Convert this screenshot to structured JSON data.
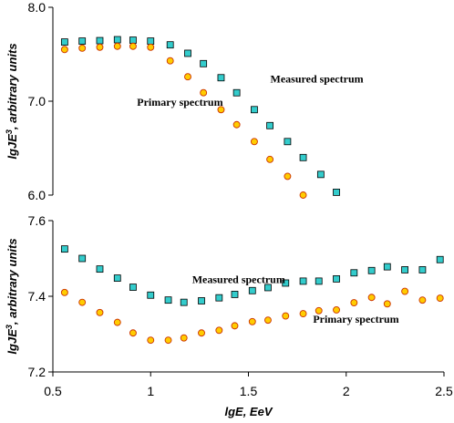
{
  "chart_data": [
    {
      "type": "scatter",
      "xlim": [
        0.5,
        2.5
      ],
      "ylim": [
        6.0,
        8.0
      ],
      "yticks": [
        "6.0",
        "7.0",
        "8.0"
      ],
      "ytick_values": [
        6.0,
        7.0,
        8.0
      ],
      "ylabel": "lgJE³, arbitrary units",
      "ylabel_main": "lgJE",
      "ylabel_sup": "3",
      "ylabel_rest": ", arbitrary units",
      "annotations": [
        {
          "text": "Measured spectrum",
          "x": 1.85,
          "y": 7.2
        },
        {
          "text": "Primary spectrum",
          "x": 1.15,
          "y": 6.95
        }
      ],
      "series": [
        {
          "marker": "square",
          "color": "#33cccc",
          "edge": "#000000",
          "x": [
            0.56,
            0.65,
            0.74,
            0.83,
            0.91,
            1.0,
            1.1,
            1.19,
            1.27,
            1.36,
            1.44,
            1.53,
            1.61,
            1.7,
            1.78,
            1.87,
            1.95
          ],
          "y": [
            7.63,
            7.64,
            7.645,
            7.655,
            7.65,
            7.64,
            7.6,
            7.51,
            7.4,
            7.25,
            7.09,
            6.91,
            6.74,
            6.57,
            6.4,
            6.22,
            6.03
          ]
        },
        {
          "marker": "circle",
          "color": "#ffcc00",
          "edge": "#cc3300",
          "x": [
            0.56,
            0.65,
            0.74,
            0.83,
            0.91,
            1.0,
            1.1,
            1.19,
            1.27,
            1.36,
            1.44,
            1.53,
            1.61,
            1.7,
            1.78
          ],
          "y": [
            7.55,
            7.565,
            7.575,
            7.585,
            7.585,
            7.575,
            7.43,
            7.26,
            7.09,
            6.91,
            6.75,
            6.57,
            6.38,
            6.2,
            6.0
          ]
        }
      ]
    },
    {
      "type": "scatter",
      "xlim": [
        0.5,
        2.5
      ],
      "ylim": [
        7.2,
        7.6
      ],
      "yticks": [
        "7.2",
        "7.4",
        "7.6"
      ],
      "ytick_values": [
        7.2,
        7.4,
        7.6
      ],
      "xticks": [
        "0.5",
        "1",
        "1.5",
        "2",
        "2.5"
      ],
      "xtick_values": [
        0.5,
        1.0,
        1.5,
        2.0,
        2.5
      ],
      "xlabel": "lgE, EeV",
      "ylabel": "lgJE³, arbitrary units",
      "ylabel_main": "lgJE",
      "ylabel_sup": "3",
      "ylabel_rest": ", arbitrary units",
      "annotations": [
        {
          "text": "Measured spectrum",
          "x": 1.45,
          "y": 7.435
        },
        {
          "text": "Primary spectrum",
          "x": 2.05,
          "y": 7.33
        }
      ],
      "series": [
        {
          "marker": "square",
          "color": "#33cccc",
          "edge": "#000000",
          "x": [
            0.56,
            0.65,
            0.74,
            0.83,
            0.91,
            1.0,
            1.09,
            1.17,
            1.26,
            1.35,
            1.43,
            1.52,
            1.6,
            1.69,
            1.78,
            1.86,
            1.95,
            2.04,
            2.13,
            2.21,
            2.3,
            2.39,
            2.48
          ],
          "y": [
            7.525,
            7.5,
            7.472,
            7.448,
            7.424,
            7.403,
            7.39,
            7.384,
            7.388,
            7.396,
            7.405,
            7.415,
            7.423,
            7.435,
            7.44,
            7.44,
            7.446,
            7.462,
            7.468,
            7.478,
            7.47,
            7.47,
            7.497
          ]
        },
        {
          "marker": "circle",
          "color": "#ffcc00",
          "edge": "#cc3300",
          "x": [
            0.56,
            0.65,
            0.74,
            0.83,
            0.91,
            1.0,
            1.09,
            1.17,
            1.26,
            1.35,
            1.43,
            1.52,
            1.6,
            1.69,
            1.78,
            1.86,
            1.95,
            2.04,
            2.13,
            2.21,
            2.3,
            2.39,
            2.48
          ],
          "y": [
            7.41,
            7.384,
            7.357,
            7.331,
            7.303,
            7.284,
            7.284,
            7.29,
            7.303,
            7.31,
            7.322,
            7.333,
            7.337,
            7.348,
            7.354,
            7.362,
            7.364,
            7.383,
            7.397,
            7.38,
            7.413,
            7.39,
            7.395
          ]
        }
      ]
    }
  ]
}
